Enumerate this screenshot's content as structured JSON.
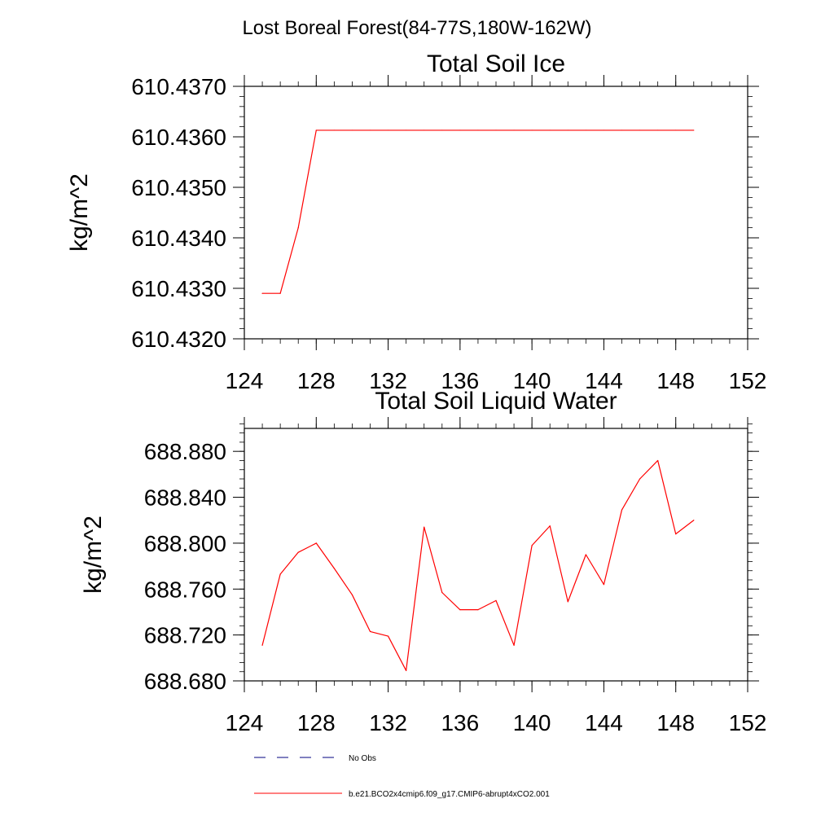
{
  "figure": {
    "title": "Lost Boreal Forest(84-77S,180W-162W)",
    "colors": {
      "model_line": "#ff0000",
      "obs_line": "#000080",
      "axis": "#000000"
    }
  },
  "chart_data": [
    {
      "type": "line",
      "title": "Total Soil Ice",
      "xlabel": "",
      "ylabel": "kg/m^2",
      "xlim": [
        124,
        152
      ],
      "ylim": [
        610.432,
        610.437
      ],
      "xticks": [
        124,
        128,
        132,
        136,
        140,
        144,
        148,
        152
      ],
      "xtick_labels": [
        "124",
        "128",
        "132",
        "136",
        "140",
        "144",
        "148",
        "152"
      ],
      "yticks": [
        610.432,
        610.433,
        610.434,
        610.435,
        610.436,
        610.437
      ],
      "ytick_labels": [
        "610.4320",
        "610.4330",
        "610.4340",
        "610.4350",
        "610.4360",
        "610.4370"
      ],
      "x_minor_step": 1,
      "y_minor_step": 0.0002,
      "series": [
        {
          "name": "b.e21.BCO2x4cmip6.f09_g17.CMIP6-abrupt4xCO2.001",
          "color": "#ff0000",
          "x": [
            125,
            126,
            127,
            128,
            129,
            130,
            131,
            132,
            133,
            134,
            135,
            136,
            137,
            138,
            139,
            140,
            141,
            142,
            143,
            144,
            145,
            146,
            147,
            148,
            149
          ],
          "values": [
            610.4329,
            610.4329,
            610.4342,
            610.43613,
            610.43613,
            610.43613,
            610.43613,
            610.43613,
            610.43613,
            610.43613,
            610.43613,
            610.43613,
            610.43613,
            610.43613,
            610.43613,
            610.43613,
            610.43613,
            610.43613,
            610.43613,
            610.43613,
            610.43613,
            610.43613,
            610.43613,
            610.43613,
            610.43613
          ]
        }
      ]
    },
    {
      "type": "line",
      "title": "Total Soil Liquid Water",
      "xlabel": "",
      "ylabel": "kg/m^2",
      "xlim": [
        124,
        152
      ],
      "ylim": [
        688.68,
        688.9
      ],
      "xticks": [
        124,
        128,
        132,
        136,
        140,
        144,
        148,
        152
      ],
      "xtick_labels": [
        "124",
        "128",
        "132",
        "136",
        "140",
        "144",
        "148",
        "152"
      ],
      "yticks": [
        688.68,
        688.72,
        688.76,
        688.8,
        688.84,
        688.88
      ],
      "ytick_labels": [
        "688.680",
        "688.720",
        "688.760",
        "688.800",
        "688.840",
        "688.880"
      ],
      "x_minor_step": 1,
      "y_minor_step": 0.008,
      "series": [
        {
          "name": "b.e21.BCO2x4cmip6.f09_g17.CMIP6-abrupt4xCO2.001",
          "color": "#ff0000",
          "x": [
            125,
            126,
            127,
            128,
            129,
            130,
            131,
            132,
            133,
            134,
            135,
            136,
            137,
            138,
            139,
            140,
            141,
            142,
            143,
            144,
            145,
            146,
            147,
            148,
            149
          ],
          "values": [
            688.711,
            688.773,
            688.792,
            688.8,
            688.778,
            688.755,
            688.723,
            688.719,
            688.689,
            688.814,
            688.757,
            688.742,
            688.742,
            688.75,
            688.711,
            688.798,
            688.815,
            688.749,
            688.79,
            688.764,
            688.829,
            688.856,
            688.872,
            688.808,
            688.82
          ]
        }
      ]
    }
  ],
  "legend": {
    "items": [
      {
        "label": "No Obs",
        "style": "dashed",
        "color": "#000080"
      },
      {
        "label": "b.e21.BCO2x4cmip6.f09_g17.CMIP6-abrupt4xCO2.001",
        "style": "solid",
        "color": "#ff0000"
      }
    ]
  }
}
